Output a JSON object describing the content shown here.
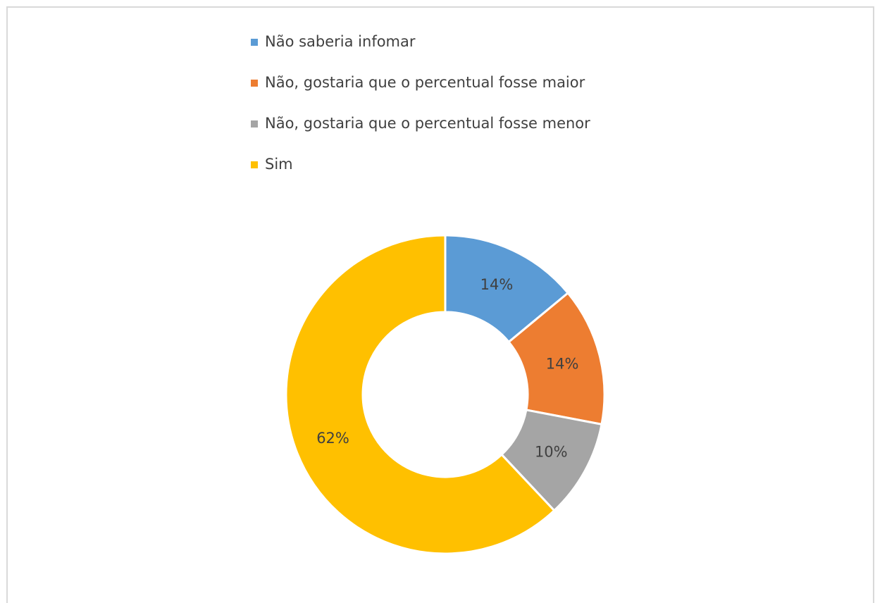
{
  "chart_data": {
    "type": "doughnut",
    "categories": [
      "Não saberia infomar",
      "Não, gostaria que o percentual fosse maior",
      "Não, gostaria que o percentual fosse menor",
      "Sim"
    ],
    "values": [
      14,
      14,
      10,
      62
    ],
    "value_labels": [
      "14%",
      "14%",
      "10%",
      "62%"
    ],
    "colors": [
      "#5b9bd5",
      "#ed7d31",
      "#a5a5a5",
      "#ffc000"
    ],
    "legend": "top"
  }
}
